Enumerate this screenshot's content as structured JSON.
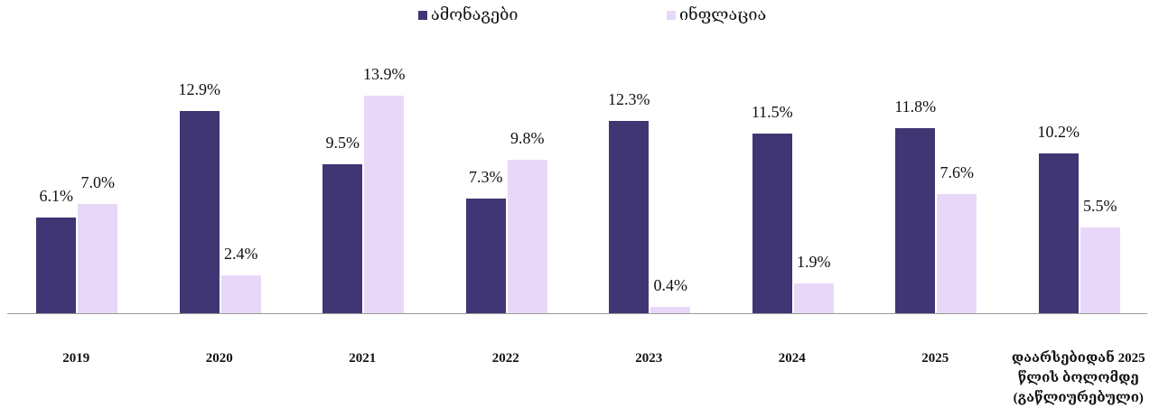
{
  "chart_data": {
    "type": "bar",
    "categories": [
      "2019",
      "2020",
      "2021",
      "2022",
      "2023",
      "2024",
      "2025",
      "დაარსებიდან 2025 წლის ბოლომდე (გაწლიურებული)"
    ],
    "series": [
      {
        "name": "ამონაგები",
        "color": "#3f3673",
        "values": [
          6.1,
          12.9,
          9.5,
          7.3,
          12.3,
          11.5,
          11.8,
          10.2
        ],
        "value_labels": [
          "6.1%",
          "12.9%",
          "9.5%",
          "7.3%",
          "12.3%",
          "11.5%",
          "11.8%",
          "10.2%"
        ]
      },
      {
        "name": "ინფლაცია",
        "color": "#e8d8f8",
        "values": [
          7.0,
          2.4,
          13.9,
          9.8,
          0.4,
          1.9,
          7.6,
          5.5
        ],
        "value_labels": [
          "7.0%",
          "2.4%",
          "13.9%",
          "9.8%",
          "0.4%",
          "1.9%",
          "7.6%",
          "5.5%"
        ]
      }
    ],
    "legend": "top"
  }
}
